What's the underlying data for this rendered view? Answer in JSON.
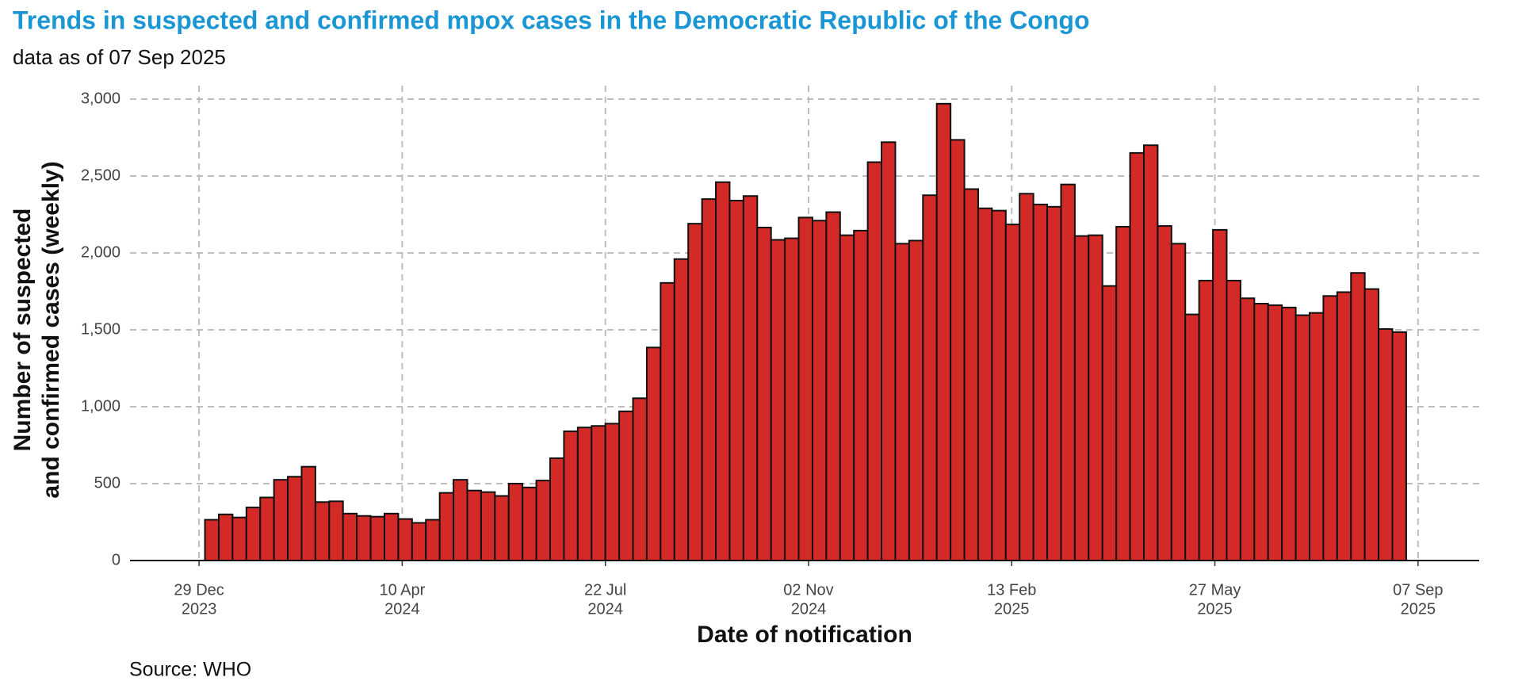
{
  "chart_data": {
    "type": "bar",
    "title": "Trends in suspected and confirmed mpox cases in the Democratic Republic of the Congo",
    "subtitle": "data as of 07 Sep 2025",
    "y_label": [
      "Number of suspected",
      "and confirmed cases (weekly)"
    ],
    "x_label": "Date of notification",
    "source": "Source: WHO",
    "color": "#d42a27",
    "grid": true,
    "bar_days": 7,
    "x": [
      "2024-01-01",
      "2024-01-08",
      "2024-01-15",
      "2024-01-22",
      "2024-01-29",
      "2024-02-05",
      "2024-02-12",
      "2024-02-19",
      "2024-02-26",
      "2024-03-04",
      "2024-03-11",
      "2024-03-18",
      "2024-03-25",
      "2024-04-01",
      "2024-04-08",
      "2024-04-15",
      "2024-04-22",
      "2024-04-29",
      "2024-05-06",
      "2024-05-13",
      "2024-05-20",
      "2024-05-27",
      "2024-06-03",
      "2024-06-10",
      "2024-06-17",
      "2024-06-24",
      "2024-07-01",
      "2024-07-08",
      "2024-07-15",
      "2024-07-22",
      "2024-07-29",
      "2024-08-05",
      "2024-08-12",
      "2024-08-19",
      "2024-08-26",
      "2024-09-02",
      "2024-09-09",
      "2024-09-16",
      "2024-09-23",
      "2024-09-30",
      "2024-10-07",
      "2024-10-14",
      "2024-10-21",
      "2024-10-28",
      "2024-11-04",
      "2024-11-11",
      "2024-11-18",
      "2024-11-25",
      "2024-12-02",
      "2024-12-09",
      "2024-12-16",
      "2024-12-23",
      "2024-12-30",
      "2025-01-06",
      "2025-01-13",
      "2025-01-20",
      "2025-01-27",
      "2025-02-03",
      "2025-02-10",
      "2025-02-17",
      "2025-02-24",
      "2025-03-03",
      "2025-03-10",
      "2025-03-17",
      "2025-03-24",
      "2025-03-31",
      "2025-04-07",
      "2025-04-14",
      "2025-04-21",
      "2025-04-28",
      "2025-05-05",
      "2025-05-12",
      "2025-05-19",
      "2025-05-26",
      "2025-06-02",
      "2025-06-09",
      "2025-06-16",
      "2025-06-23",
      "2025-06-30",
      "2025-07-07",
      "2025-07-14",
      "2025-07-21",
      "2025-07-28",
      "2025-08-04",
      "2025-08-11",
      "2025-08-18",
      "2025-08-25"
    ],
    "values": [
      265,
      300,
      280,
      345,
      410,
      525,
      545,
      610,
      380,
      385,
      305,
      290,
      285,
      305,
      270,
      245,
      265,
      440,
      525,
      455,
      445,
      420,
      500,
      475,
      520,
      665,
      840,
      865,
      875,
      890,
      970,
      1055,
      1385,
      1805,
      1960,
      2190,
      2350,
      2460,
      2340,
      2370,
      2165,
      2085,
      2095,
      2230,
      2210,
      2265,
      2115,
      2145,
      2590,
      2720,
      2060,
      2080,
      2375,
      2970,
      2735,
      2415,
      2290,
      2275,
      2185,
      2385,
      2315,
      2300,
      2445,
      2110,
      2115,
      1785,
      2170,
      2650,
      2700,
      2175,
      2060,
      1600,
      1820,
      2150,
      1820,
      1705,
      1670,
      1660,
      1645,
      1595,
      1610,
      1720,
      1745,
      1870,
      1765,
      1505,
      1485
    ],
    "xlim": [
      "2023-11-24",
      "2025-10-08"
    ],
    "xticks": [
      {
        "value": "2023-12-29",
        "label": [
          "29 Dec",
          "2023"
        ]
      },
      {
        "value": "2024-04-10",
        "label": [
          "10 Apr",
          "2024"
        ]
      },
      {
        "value": "2024-07-22",
        "label": [
          "22 Jul",
          "2024"
        ]
      },
      {
        "value": "2024-11-02",
        "label": [
          "02 Nov",
          "2024"
        ]
      },
      {
        "value": "2025-02-13",
        "label": [
          "13 Feb",
          "2025"
        ]
      },
      {
        "value": "2025-05-27",
        "label": [
          "27 May",
          "2025"
        ]
      },
      {
        "value": "2025-09-07",
        "label": [
          "07 Sep",
          "2025"
        ]
      }
    ],
    "ylim": [
      0,
      3000
    ],
    "yticks": [
      0,
      {
        "value": 500,
        "label": "500"
      },
      {
        "value": 1000,
        "label": "1,000"
      },
      {
        "value": 1500,
        "label": "1,500"
      },
      {
        "value": 2000,
        "label": "2,000"
      },
      {
        "value": 2500,
        "label": "2,500"
      },
      {
        "value": 3000,
        "label": "3,000"
      }
    ]
  }
}
